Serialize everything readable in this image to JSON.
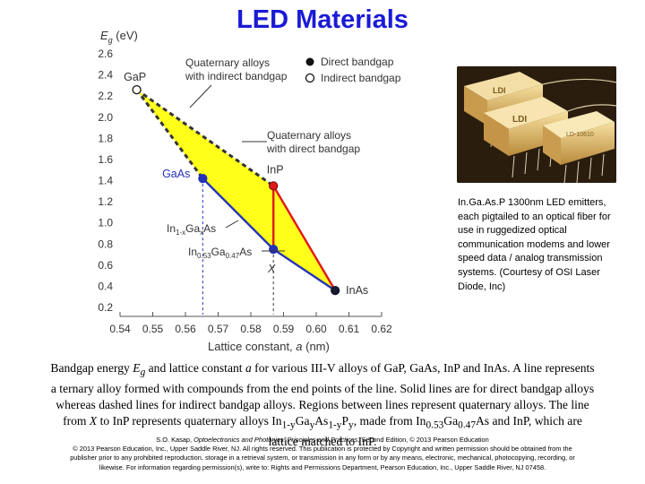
{
  "title": "LED Materials",
  "colors": {
    "title": "#1a1ad6",
    "quaternary_fill": "#ffff1a",
    "gaas_line": "#2432b8",
    "inp_line": "#e01818",
    "axis": "#555555"
  },
  "chart_data": {
    "type": "scatter",
    "title": "",
    "xlabel_prefix": "Lattice constant, ",
    "xlabel_var": "a",
    "xlabel_unit": " (nm)",
    "ylabel_var": "E",
    "ylabel_sub": "g",
    "ylabel_unit": " (eV)",
    "xlim": [
      0.54,
      0.62
    ],
    "ylim": [
      0.2,
      2.6
    ],
    "x_ticks": [
      0.54,
      0.55,
      0.56,
      0.57,
      0.58,
      0.59,
      0.6,
      0.61,
      0.62
    ],
    "x_tick_labels": [
      "0.54",
      "0.55",
      "0.56",
      "0.57",
      "0.58",
      "0.59",
      "0.60",
      "0.61",
      "0.62"
    ],
    "y_ticks": [
      0.2,
      0.4,
      0.6,
      0.8,
      1.0,
      1.2,
      1.4,
      1.6,
      1.8,
      2.0,
      2.2,
      2.4,
      2.6
    ],
    "y_tick_labels": [
      "0.2",
      "0.4",
      "0.6",
      "0.8",
      "1.0",
      "1.2",
      "1.4",
      "1.6",
      "1.8",
      "2.0",
      "2.2",
      "2.4",
      "2.6"
    ],
    "points": [
      {
        "name": "GaP",
        "label": "GaP",
        "x": 0.5451,
        "y": 2.26,
        "marker": "open"
      },
      {
        "name": "GaAs",
        "label": "GaAs",
        "x": 0.5653,
        "y": 1.42,
        "marker": "filled-blue"
      },
      {
        "name": "InP",
        "label": "InP",
        "x": 0.5869,
        "y": 1.35,
        "marker": "filled-red"
      },
      {
        "name": "InAs",
        "label": "InAs",
        "x": 0.6058,
        "y": 0.36,
        "marker": "filled-dark"
      },
      {
        "name": "X",
        "label": "X",
        "x": 0.5869,
        "y": 0.75,
        "marker": "filled-blue"
      }
    ],
    "lines": [
      {
        "name": "GaP-GaAs",
        "style": "dashed",
        "points": [
          [
            0.5451,
            2.26
          ],
          [
            0.5653,
            1.42
          ]
        ]
      },
      {
        "name": "GaP-InP",
        "style": "dashed",
        "points": [
          [
            0.5451,
            2.26
          ],
          [
            0.5869,
            1.35
          ]
        ]
      },
      {
        "name": "GaAs-InAs",
        "style": "solid",
        "color": "blue",
        "points": [
          [
            0.5653,
            1.42
          ],
          [
            0.5869,
            0.75
          ],
          [
            0.6058,
            0.36
          ]
        ]
      },
      {
        "name": "InP-InAs",
        "style": "solid",
        "color": "red",
        "points": [
          [
            0.5869,
            1.35
          ],
          [
            0.6058,
            0.36
          ]
        ]
      },
      {
        "name": "X-InP",
        "style": "solid",
        "color": "red",
        "points": [
          [
            0.5869,
            0.75
          ],
          [
            0.5869,
            1.35
          ]
        ]
      }
    ],
    "legend": [
      {
        "marker": "filled",
        "label": "Direct bandgap"
      },
      {
        "marker": "open",
        "label": "Indirect bandgap"
      }
    ],
    "annotations": {
      "quaternary_indirect": [
        "Quaternary alloys",
        "with indirect bandgap"
      ],
      "quaternary_direct": [
        "Quaternary alloys",
        "with direct bandgap"
      ],
      "ternary": {
        "a": "In",
        "a_sub": "1-x",
        "b": "Ga",
        "b_sub": "x",
        "c": "As"
      },
      "lattice_matched": {
        "a": "In",
        "a_sub": "0.53",
        "b": "Ga",
        "b_sub": "0.47",
        "c": "As"
      }
    }
  },
  "photo": {
    "brand": "LDI",
    "part_label": "LD-10610",
    "caption": "In.Ga.As.P 1300nm LED emitters, each pigtailed to an optical fiber for use in ruggedized optical communication modems and lower speed data / analog transmission systems. (Courtesy of OSI Laser Diode, Inc)"
  },
  "caption": {
    "t1": "Bandgap energy ",
    "eg_var": "E",
    "eg_sub": "g",
    "t2": " and lattice constant ",
    "a_var": "a",
    "t3": " for various III-V alloys of GaP, GaAs, InP and InAs. A line represents a ternary alloy formed with compounds from the end points of the line. Solid lines are for direct bandgap alloys whereas dashed lines for indirect bandgap alloys.  Regions between lines represent quaternary alloys. The line from ",
    "x_var": "X",
    "t4": " to InP represents quaternary alloys In",
    "s1": "1-y",
    "t5": "Ga",
    "s2": "y",
    "t6": "As",
    "s3": "1-y",
    "t7": "P",
    "s4": "y",
    "t8": ", made from In",
    "s5": "0.53",
    "t9": "Ga",
    "s6": "0.47",
    "t10": "As and InP, which are lattice matched to InP."
  },
  "credits": {
    "c1": "S.O. Kasap, ",
    "book": "Optoelectronics and Photonics: Principles and Practices",
    "c2": ", Second Edition, © 2013 Pearson Education",
    "line2": "© 2013 Pearson Education, Inc., Upper Saddle River, NJ. All rights reserved. This publication is protected by Copyright and written permission should be obtained from the",
    "line3": "publisher prior to any prohibited reproduction, storage in a retrieval system, or transmission in any form or by any means, electronic, mechanical, photocopying, recording, or",
    "line4": "likewise. For information regarding permission(s), write to: Rights and Permissions Department, Pearson Education, Inc., Upper Saddle River, NJ 07458."
  }
}
